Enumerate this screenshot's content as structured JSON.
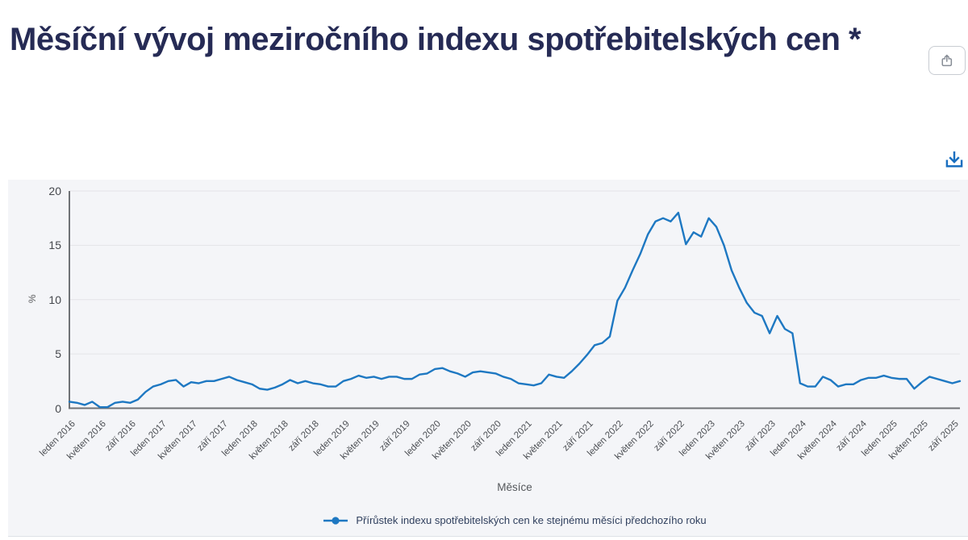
{
  "header": {
    "title": "Měsíční vývoj meziročního indexu spotřebitelských cen *"
  },
  "toolbar": {
    "share_icon": "share-export-icon",
    "download_icon": "download-icon"
  },
  "colors": {
    "title": "#262b55",
    "series_line": "#1e78c2",
    "download_icon": "#1a6fc0",
    "share_icon": "#878d96",
    "card_background": "#f4f5f8",
    "axis": "#6f7276",
    "gridline": "#e3e4e7"
  },
  "chart_data": {
    "type": "line",
    "title": "Měsíční vývoj meziročního indexu spotřebitelských cen *",
    "xlabel": "Měsíce",
    "ylabel": "%",
    "ylim": [
      0,
      20
    ],
    "y_ticks": [
      0,
      5,
      10,
      15,
      20
    ],
    "grid": "horizontal",
    "legend_position": "bottom",
    "x_start": "leden 2016",
    "x_end": "říjen 2025",
    "frequency": "monthly",
    "tick_every": 4,
    "x_tick_labels": [
      "leden 2016",
      "květen 2016",
      "září 2016",
      "leden 2017",
      "květen 2017",
      "září 2017",
      "leden 2018",
      "květen 2018",
      "září 2018",
      "leden 2019",
      "květen 2019",
      "září 2019",
      "leden 2020",
      "květen 2020",
      "září 2020",
      "leden 2021",
      "květen 2021",
      "září 2021",
      "leden 2022",
      "květen 2022",
      "září 2022",
      "leden 2023",
      "květen 2023",
      "září 2023",
      "leden 2024",
      "květen 2024",
      "září 2024",
      "leden 2025",
      "květen 2025",
      "září 2025"
    ],
    "series": [
      {
        "name": "Přírůstek indexu spotřebitelských cen ke stejnému měsíci předchozího roku",
        "color": "#1e78c2",
        "values": [
          0.6,
          0.5,
          0.3,
          0.6,
          0.1,
          0.1,
          0.5,
          0.6,
          0.5,
          0.8,
          1.5,
          2.0,
          2.2,
          2.5,
          2.6,
          2.0,
          2.4,
          2.3,
          2.5,
          2.5,
          2.7,
          2.9,
          2.6,
          2.4,
          2.2,
          1.8,
          1.7,
          1.9,
          2.2,
          2.6,
          2.3,
          2.5,
          2.3,
          2.2,
          2.0,
          2.0,
          2.5,
          2.7,
          3.0,
          2.8,
          2.9,
          2.7,
          2.9,
          2.9,
          2.7,
          2.7,
          3.1,
          3.2,
          3.6,
          3.7,
          3.4,
          3.2,
          2.9,
          3.3,
          3.4,
          3.3,
          3.2,
          2.9,
          2.7,
          2.3,
          2.2,
          2.1,
          2.3,
          3.1,
          2.9,
          2.8,
          3.4,
          4.1,
          4.9,
          5.8,
          6.0,
          6.6,
          9.9,
          11.1,
          12.7,
          14.2,
          16.0,
          17.2,
          17.5,
          17.2,
          18.0,
          15.1,
          16.2,
          15.8,
          17.5,
          16.7,
          15.0,
          12.7,
          11.1,
          9.7,
          8.8,
          8.5,
          6.9,
          8.5,
          7.3,
          6.9,
          2.3,
          2.0,
          2.0,
          2.9,
          2.6,
          2.0,
          2.2,
          2.2,
          2.6,
          2.8,
          2.8,
          3.0,
          2.8,
          2.7,
          2.7,
          1.8,
          2.4,
          2.9,
          2.7,
          2.5,
          2.3,
          2.5
        ]
      }
    ]
  }
}
